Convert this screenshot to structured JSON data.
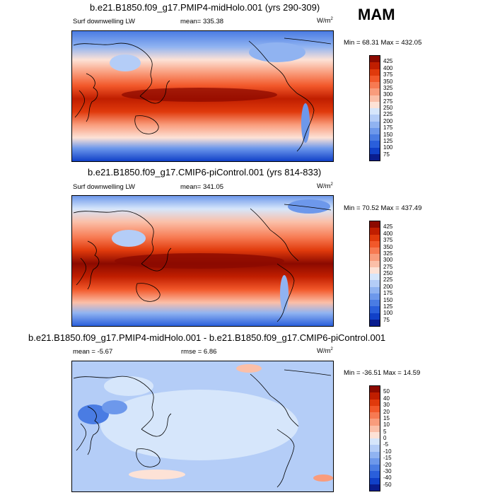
{
  "season": "MAM",
  "units_base": "W/m",
  "units_exp": "2",
  "panels": [
    {
      "id": "midholo",
      "title": "b.e21.B1850.f09_g17.PMIP4-midHolo.001 (yrs 290-309)",
      "variable": "Surf downwelling LW",
      "mean_text": "mean= 335.38",
      "minmax_text": "Min =  68.31 Max = 432.05",
      "colorbar": {
        "levels": [
          "425",
          "400",
          "375",
          "350",
          "325",
          "300",
          "275",
          "250",
          "225",
          "200",
          "175",
          "150",
          "125",
          "100",
          "75"
        ],
        "colors": [
          "#8c0a00",
          "#c01e00",
          "#e03a0c",
          "#f2582a",
          "#f77a52",
          "#f99c7c",
          "#fbbfa8",
          "#fde2d6",
          "#d6e6fb",
          "#b4cdf7",
          "#90b3f1",
          "#6d98eb",
          "#4a7ce3",
          "#2a5fdb",
          "#1140c8",
          "#0a1d8f"
        ]
      }
    },
    {
      "id": "picontrol",
      "title": "b.e21.B1850.f09_g17.CMIP6-piControl.001 (yrs 814-833)",
      "variable": "Surf downwelling LW",
      "mean_text": "mean= 341.05",
      "minmax_text": "Min =  70.52 Max = 437.49",
      "colorbar": {
        "levels": [
          "425",
          "400",
          "375",
          "350",
          "325",
          "300",
          "275",
          "250",
          "225",
          "200",
          "175",
          "150",
          "125",
          "100",
          "75"
        ],
        "colors": [
          "#8c0a00",
          "#c01e00",
          "#e03a0c",
          "#f2582a",
          "#f77a52",
          "#f99c7c",
          "#fbbfa8",
          "#fde2d6",
          "#d6e6fb",
          "#b4cdf7",
          "#90b3f1",
          "#6d98eb",
          "#4a7ce3",
          "#2a5fdb",
          "#1140c8",
          "#0a1d8f"
        ]
      }
    },
    {
      "id": "difference",
      "title": "b.e21.B1850.f09_g17.PMIP4-midHolo.001 - b.e21.B1850.f09_g17.CMIP6-piControl.001",
      "mean_text": "mean =  -5.67",
      "rmse_text": "rmse =   6.86",
      "minmax_text": "Min = -36.51 Max =  14.59",
      "colorbar": {
        "levels": [
          "50",
          "40",
          "30",
          "20",
          "15",
          "10",
          "5",
          "0",
          "-5",
          "-10",
          "-15",
          "-20",
          "-30",
          "-40",
          "-50"
        ],
        "colors": [
          "#8c0a00",
          "#c01e00",
          "#e03a0c",
          "#f2582a",
          "#f77a52",
          "#f99c7c",
          "#fbbfa8",
          "#fde2d6",
          "#d6e6fb",
          "#b4cdf7",
          "#90b3f1",
          "#6d98eb",
          "#4a7ce3",
          "#2a5fdb",
          "#1140c8",
          "#0a1d8f"
        ]
      }
    }
  ]
}
